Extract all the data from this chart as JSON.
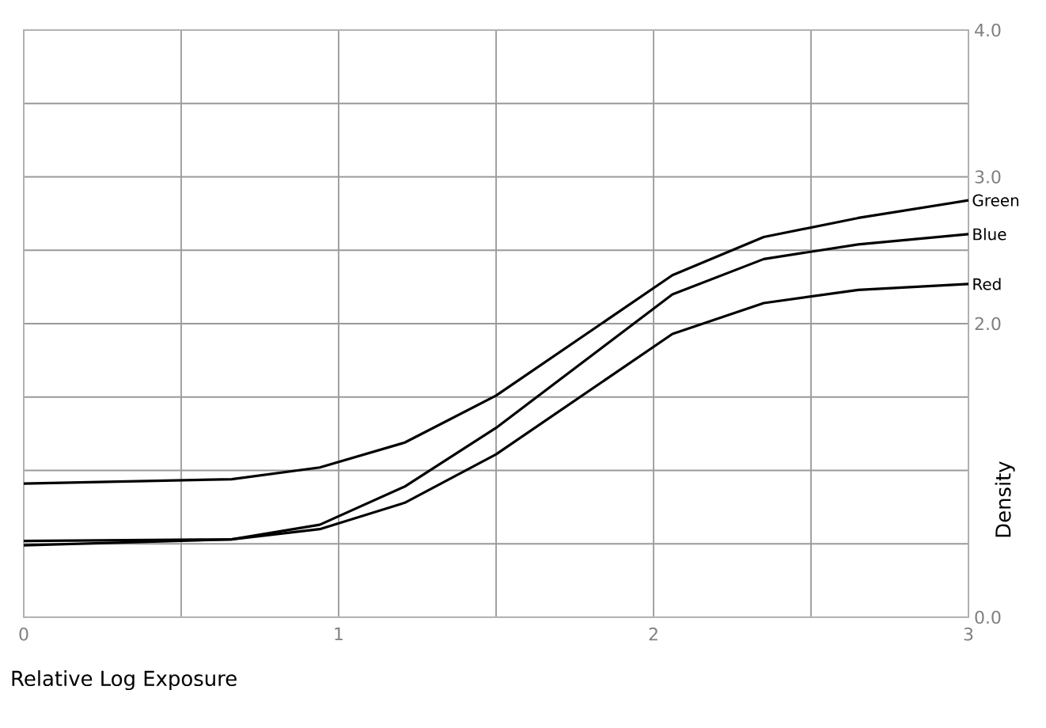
{
  "chart_data": {
    "type": "line",
    "xlabel": "Relative Log Exposure",
    "ylabel": "Density",
    "xlim": [
      0,
      3
    ],
    "ylim": [
      0,
      4
    ],
    "xticks": [
      0,
      {
        "value": 0.5,
        "label": null
      },
      1,
      {
        "value": 1.5,
        "label": null
      },
      2,
      {
        "value": 2.5,
        "label": null
      },
      3
    ],
    "yticks": [
      {
        "value": 0,
        "label": "0.0"
      },
      {
        "value": 0.5,
        "label": null
      },
      {
        "value": 1,
        "label": null
      },
      {
        "value": 1.5,
        "label": null
      },
      {
        "value": 2,
        "label": "2.0"
      },
      {
        "value": 2.5,
        "label": null
      },
      {
        "value": 3,
        "label": "3.0"
      },
      {
        "value": 3.5,
        "label": null
      },
      {
        "value": 4,
        "label": "4.0"
      }
    ],
    "grid": true,
    "marker": "none",
    "line_style": "solid",
    "x": [
      0,
      0.66,
      0.94,
      1.21,
      1.5,
      2.06,
      2.35,
      2.65,
      3.0
    ],
    "series": [
      {
        "name": "Green",
        "color": "#000000",
        "values": [
          0.91,
          0.94,
          1.02,
          1.19,
          1.51,
          2.33,
          2.59,
          2.72,
          2.84
        ]
      },
      {
        "name": "Blue",
        "color": "#000000",
        "values": [
          0.49,
          0.53,
          0.63,
          0.89,
          1.29,
          2.2,
          2.44,
          2.54,
          2.61
        ]
      },
      {
        "name": "Red",
        "color": "#000000",
        "values": [
          0.52,
          0.53,
          0.6,
          0.78,
          1.11,
          1.93,
          2.14,
          2.23,
          2.27
        ]
      }
    ]
  }
}
